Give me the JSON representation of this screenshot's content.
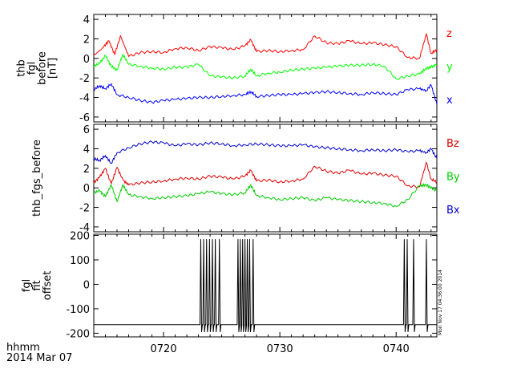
{
  "colors": {
    "red": "#ff0000",
    "green": "#00ff00",
    "blue": "#0000ff",
    "dkred": "#dd0000",
    "dkgreen": "#00cc00",
    "dkblue": "#0000cc",
    "black": "#000000"
  },
  "footer": {
    "time_label": "hhmm",
    "date_label": "2014 Mar 07"
  },
  "timestamp_note": "Mon Nov 17 04:36:00 2014",
  "chart_data": [
    {
      "type": "line",
      "ylabel_lines": [
        "thb",
        "fgl",
        "before",
        "[nT]"
      ],
      "ylim": [
        -6.5,
        4.5
      ],
      "yticks": [
        -6,
        -4,
        -2,
        0,
        2,
        4
      ],
      "xlim": [
        714,
        743.5
      ],
      "series": [
        {
          "name": "z",
          "color": "red",
          "x": [
            714,
            714.7,
            715.3,
            715.8,
            716.3,
            717,
            718,
            719,
            720,
            721,
            722,
            723,
            724,
            725,
            726,
            727,
            727.5,
            728,
            729,
            730,
            731,
            732,
            733,
            734,
            735,
            736,
            737,
            738,
            739,
            740,
            741,
            742,
            742.6,
            743,
            743.5
          ],
          "y": [
            0.3,
            1.0,
            1.8,
            0.4,
            2.3,
            0.2,
            0.6,
            0.7,
            0.6,
            1.0,
            1.1,
            0.8,
            1.2,
            1.1,
            0.9,
            1.3,
            1.9,
            0.7,
            0.8,
            0.7,
            0.8,
            0.9,
            2.3,
            1.6,
            1.5,
            1.8,
            1.5,
            1.6,
            1.4,
            1.2,
            0.1,
            0.0,
            2.5,
            0.5,
            0.9
          ]
        },
        {
          "name": "y",
          "color": "green",
          "x": [
            714,
            714.5,
            715,
            715.5,
            716,
            716.5,
            717,
            718,
            719,
            720,
            721,
            722,
            723,
            724,
            725,
            726,
            727,
            727.5,
            728,
            729,
            730,
            731,
            732,
            733,
            734,
            735,
            736,
            737,
            738,
            739,
            740,
            741,
            742,
            742.6,
            743,
            743.5
          ],
          "y": [
            -0.8,
            -0.5,
            0.3,
            -0.8,
            -1.2,
            0.4,
            -0.6,
            -0.8,
            -1.0,
            -1.1,
            -0.9,
            -0.9,
            -0.6,
            -1.8,
            -1.9,
            -2.0,
            -1.8,
            -1.1,
            -1.8,
            -1.5,
            -1.4,
            -1.2,
            -1.1,
            -1.0,
            -0.9,
            -0.8,
            -0.7,
            -0.7,
            -0.6,
            -0.8,
            -2.1,
            -1.8,
            -1.6,
            -1.0,
            -0.9,
            -0.6
          ]
        },
        {
          "name": "x",
          "color": "blue",
          "x": [
            714,
            714.5,
            715,
            715.5,
            716,
            717,
            718,
            719,
            720,
            721,
            722,
            723,
            724,
            725,
            726,
            727,
            727.5,
            728,
            729,
            730,
            731,
            732,
            733,
            734,
            735,
            736,
            737,
            738,
            739,
            740,
            741,
            742,
            742.6,
            743,
            743.5
          ],
          "y": [
            -3.2,
            -2.8,
            -3.1,
            -2.6,
            -3.7,
            -4.0,
            -4.3,
            -4.5,
            -4.3,
            -4.2,
            -4.1,
            -4.0,
            -4.0,
            -3.9,
            -3.8,
            -3.7,
            -3.4,
            -3.9,
            -3.8,
            -3.7,
            -3.7,
            -3.6,
            -3.5,
            -3.4,
            -3.5,
            -3.6,
            -3.7,
            -3.5,
            -3.6,
            -3.7,
            -3.2,
            -3.1,
            -3.3,
            -2.7,
            -4.7
          ]
        }
      ]
    },
    {
      "type": "line",
      "ylabel_lines": [
        "thb_fgs_before"
      ],
      "ylim": [
        -4.5,
        6.5
      ],
      "yticks": [
        -4,
        -2,
        0,
        2,
        4,
        6
      ],
      "xlim": [
        714,
        743.5
      ],
      "series": [
        {
          "name": "Bz",
          "color": "dkred",
          "x": [
            714,
            714.5,
            715,
            715.5,
            716,
            716.5,
            717,
            718,
            719,
            720,
            721,
            722,
            723,
            724,
            725,
            726,
            727,
            727.5,
            728,
            729,
            730,
            731,
            732,
            733,
            734,
            735,
            736,
            737,
            738,
            739,
            740,
            741,
            742,
            742.6,
            743,
            743.5
          ],
          "y": [
            0.5,
            1.1,
            2.0,
            0.4,
            2.1,
            0.8,
            0.3,
            0.5,
            0.6,
            0.7,
            0.9,
            1.0,
            0.9,
            1.2,
            1.1,
            0.9,
            1.2,
            1.8,
            0.7,
            0.8,
            0.6,
            0.7,
            0.9,
            2.2,
            1.7,
            1.5,
            1.8,
            1.4,
            1.5,
            1.3,
            1.2,
            0.2,
            0.1,
            2.6,
            0.9,
            0.6
          ]
        },
        {
          "name": "By",
          "color": "dkgreen",
          "x": [
            714,
            714.5,
            715,
            715.5,
            716,
            716.5,
            717,
            718,
            719,
            720,
            721,
            722,
            723,
            724,
            725,
            726,
            727,
            727.5,
            728,
            729,
            730,
            731,
            732,
            733,
            734,
            735,
            736,
            737,
            738,
            739,
            740,
            741,
            742,
            742.6,
            743,
            743.5
          ],
          "y": [
            -0.5,
            -0.3,
            -0.9,
            0.3,
            -1.4,
            0.3,
            -0.7,
            -0.9,
            -1.1,
            -1.0,
            -0.9,
            -0.8,
            -0.6,
            -0.4,
            -0.6,
            -0.7,
            -0.5,
            0.3,
            -0.8,
            -1.0,
            -1.2,
            -1.1,
            -1.0,
            -1.3,
            -1.0,
            -1.2,
            -1.3,
            -1.4,
            -1.5,
            -1.6,
            -1.9,
            -1.2,
            0.2,
            0.3,
            0.0,
            -0.3
          ]
        },
        {
          "name": "Bx",
          "color": "dkblue",
          "x": [
            714,
            714.5,
            715,
            715.5,
            716,
            717,
            718,
            719,
            720,
            721,
            722,
            723,
            724,
            725,
            726,
            727,
            728,
            729,
            730,
            731,
            732,
            733,
            734,
            735,
            736,
            737,
            738,
            739,
            740,
            741,
            742,
            742.6,
            743,
            743.5
          ],
          "y": [
            3.0,
            2.8,
            3.3,
            2.5,
            3.6,
            4.1,
            4.5,
            4.7,
            4.6,
            4.3,
            4.5,
            4.4,
            4.6,
            4.5,
            4.3,
            4.4,
            4.5,
            4.4,
            4.3,
            4.3,
            4.4,
            4.2,
            4.1,
            4.0,
            3.9,
            3.8,
            3.9,
            3.8,
            3.9,
            3.7,
            3.8,
            3.6,
            4.0,
            3.0
          ]
        }
      ]
    },
    {
      "type": "line",
      "ylabel_lines": [
        "fgl",
        "fit",
        "offset"
      ],
      "ylim": [
        -215,
        205
      ],
      "yticks": [
        -200,
        -100,
        0,
        100,
        200
      ],
      "xlim": [
        714,
        743.5
      ],
      "xticks": [
        720,
        730,
        740
      ],
      "xtick_labels": [
        "0720",
        "0730",
        "0740"
      ],
      "baseline": -165,
      "spike_top": 185,
      "spike_bottom": -195,
      "spikes_x": [
        723.2,
        723.45,
        723.7,
        723.95,
        724.2,
        724.45,
        724.8,
        726.4,
        726.6,
        726.8,
        727.0,
        727.2,
        727.4,
        727.7,
        740.7,
        740.95,
        741.5,
        742.6
      ]
    }
  ]
}
